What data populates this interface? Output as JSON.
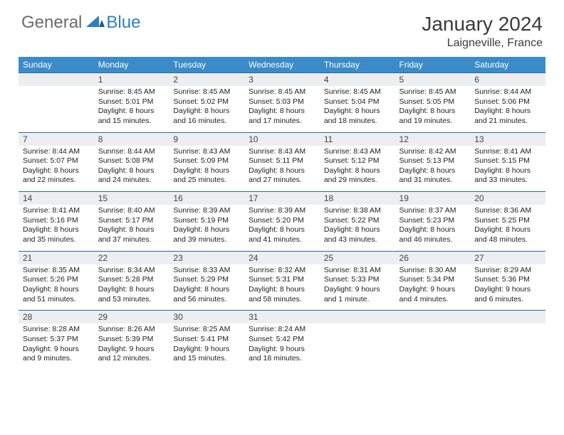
{
  "logo": {
    "general": "General",
    "blue": "Blue"
  },
  "title": "January 2024",
  "location": "Laigneville, France",
  "header_bg": "#3b8bc8",
  "divider_color": "#2b6aa0",
  "date_row_bg": "#eceeef",
  "day_names": [
    "Sunday",
    "Monday",
    "Tuesday",
    "Wednesday",
    "Thursday",
    "Friday",
    "Saturday"
  ],
  "weeks": [
    {
      "dates": [
        "",
        "1",
        "2",
        "3",
        "4",
        "5",
        "6"
      ],
      "info": [
        "",
        "Sunrise: 8:45 AM\nSunset: 5:01 PM\nDaylight: 8 hours and 15 minutes.",
        "Sunrise: 8:45 AM\nSunset: 5:02 PM\nDaylight: 8 hours and 16 minutes.",
        "Sunrise: 8:45 AM\nSunset: 5:03 PM\nDaylight: 8 hours and 17 minutes.",
        "Sunrise: 8:45 AM\nSunset: 5:04 PM\nDaylight: 8 hours and 18 minutes.",
        "Sunrise: 8:45 AM\nSunset: 5:05 PM\nDaylight: 8 hours and 19 minutes.",
        "Sunrise: 8:44 AM\nSunset: 5:06 PM\nDaylight: 8 hours and 21 minutes."
      ]
    },
    {
      "dates": [
        "7",
        "8",
        "9",
        "10",
        "11",
        "12",
        "13"
      ],
      "info": [
        "Sunrise: 8:44 AM\nSunset: 5:07 PM\nDaylight: 8 hours and 22 minutes.",
        "Sunrise: 8:44 AM\nSunset: 5:08 PM\nDaylight: 8 hours and 24 minutes.",
        "Sunrise: 8:43 AM\nSunset: 5:09 PM\nDaylight: 8 hours and 25 minutes.",
        "Sunrise: 8:43 AM\nSunset: 5:11 PM\nDaylight: 8 hours and 27 minutes.",
        "Sunrise: 8:43 AM\nSunset: 5:12 PM\nDaylight: 8 hours and 29 minutes.",
        "Sunrise: 8:42 AM\nSunset: 5:13 PM\nDaylight: 8 hours and 31 minutes.",
        "Sunrise: 8:41 AM\nSunset: 5:15 PM\nDaylight: 8 hours and 33 minutes."
      ]
    },
    {
      "dates": [
        "14",
        "15",
        "16",
        "17",
        "18",
        "19",
        "20"
      ],
      "info": [
        "Sunrise: 8:41 AM\nSunset: 5:16 PM\nDaylight: 8 hours and 35 minutes.",
        "Sunrise: 8:40 AM\nSunset: 5:17 PM\nDaylight: 8 hours and 37 minutes.",
        "Sunrise: 8:39 AM\nSunset: 5:19 PM\nDaylight: 8 hours and 39 minutes.",
        "Sunrise: 8:39 AM\nSunset: 5:20 PM\nDaylight: 8 hours and 41 minutes.",
        "Sunrise: 8:38 AM\nSunset: 5:22 PM\nDaylight: 8 hours and 43 minutes.",
        "Sunrise: 8:37 AM\nSunset: 5:23 PM\nDaylight: 8 hours and 46 minutes.",
        "Sunrise: 8:36 AM\nSunset: 5:25 PM\nDaylight: 8 hours and 48 minutes."
      ]
    },
    {
      "dates": [
        "21",
        "22",
        "23",
        "24",
        "25",
        "26",
        "27"
      ],
      "info": [
        "Sunrise: 8:35 AM\nSunset: 5:26 PM\nDaylight: 8 hours and 51 minutes.",
        "Sunrise: 8:34 AM\nSunset: 5:28 PM\nDaylight: 8 hours and 53 minutes.",
        "Sunrise: 8:33 AM\nSunset: 5:29 PM\nDaylight: 8 hours and 56 minutes.",
        "Sunrise: 8:32 AM\nSunset: 5:31 PM\nDaylight: 8 hours and 58 minutes.",
        "Sunrise: 8:31 AM\nSunset: 5:33 PM\nDaylight: 9 hours and 1 minute.",
        "Sunrise: 8:30 AM\nSunset: 5:34 PM\nDaylight: 9 hours and 4 minutes.",
        "Sunrise: 8:29 AM\nSunset: 5:36 PM\nDaylight: 9 hours and 6 minutes."
      ]
    },
    {
      "dates": [
        "28",
        "29",
        "30",
        "31",
        "",
        "",
        ""
      ],
      "info": [
        "Sunrise: 8:28 AM\nSunset: 5:37 PM\nDaylight: 9 hours and 9 minutes.",
        "Sunrise: 8:26 AM\nSunset: 5:39 PM\nDaylight: 9 hours and 12 minutes.",
        "Sunrise: 8:25 AM\nSunset: 5:41 PM\nDaylight: 9 hours and 15 minutes.",
        "Sunrise: 8:24 AM\nSunset: 5:42 PM\nDaylight: 9 hours and 18 minutes.",
        "",
        "",
        ""
      ]
    }
  ]
}
